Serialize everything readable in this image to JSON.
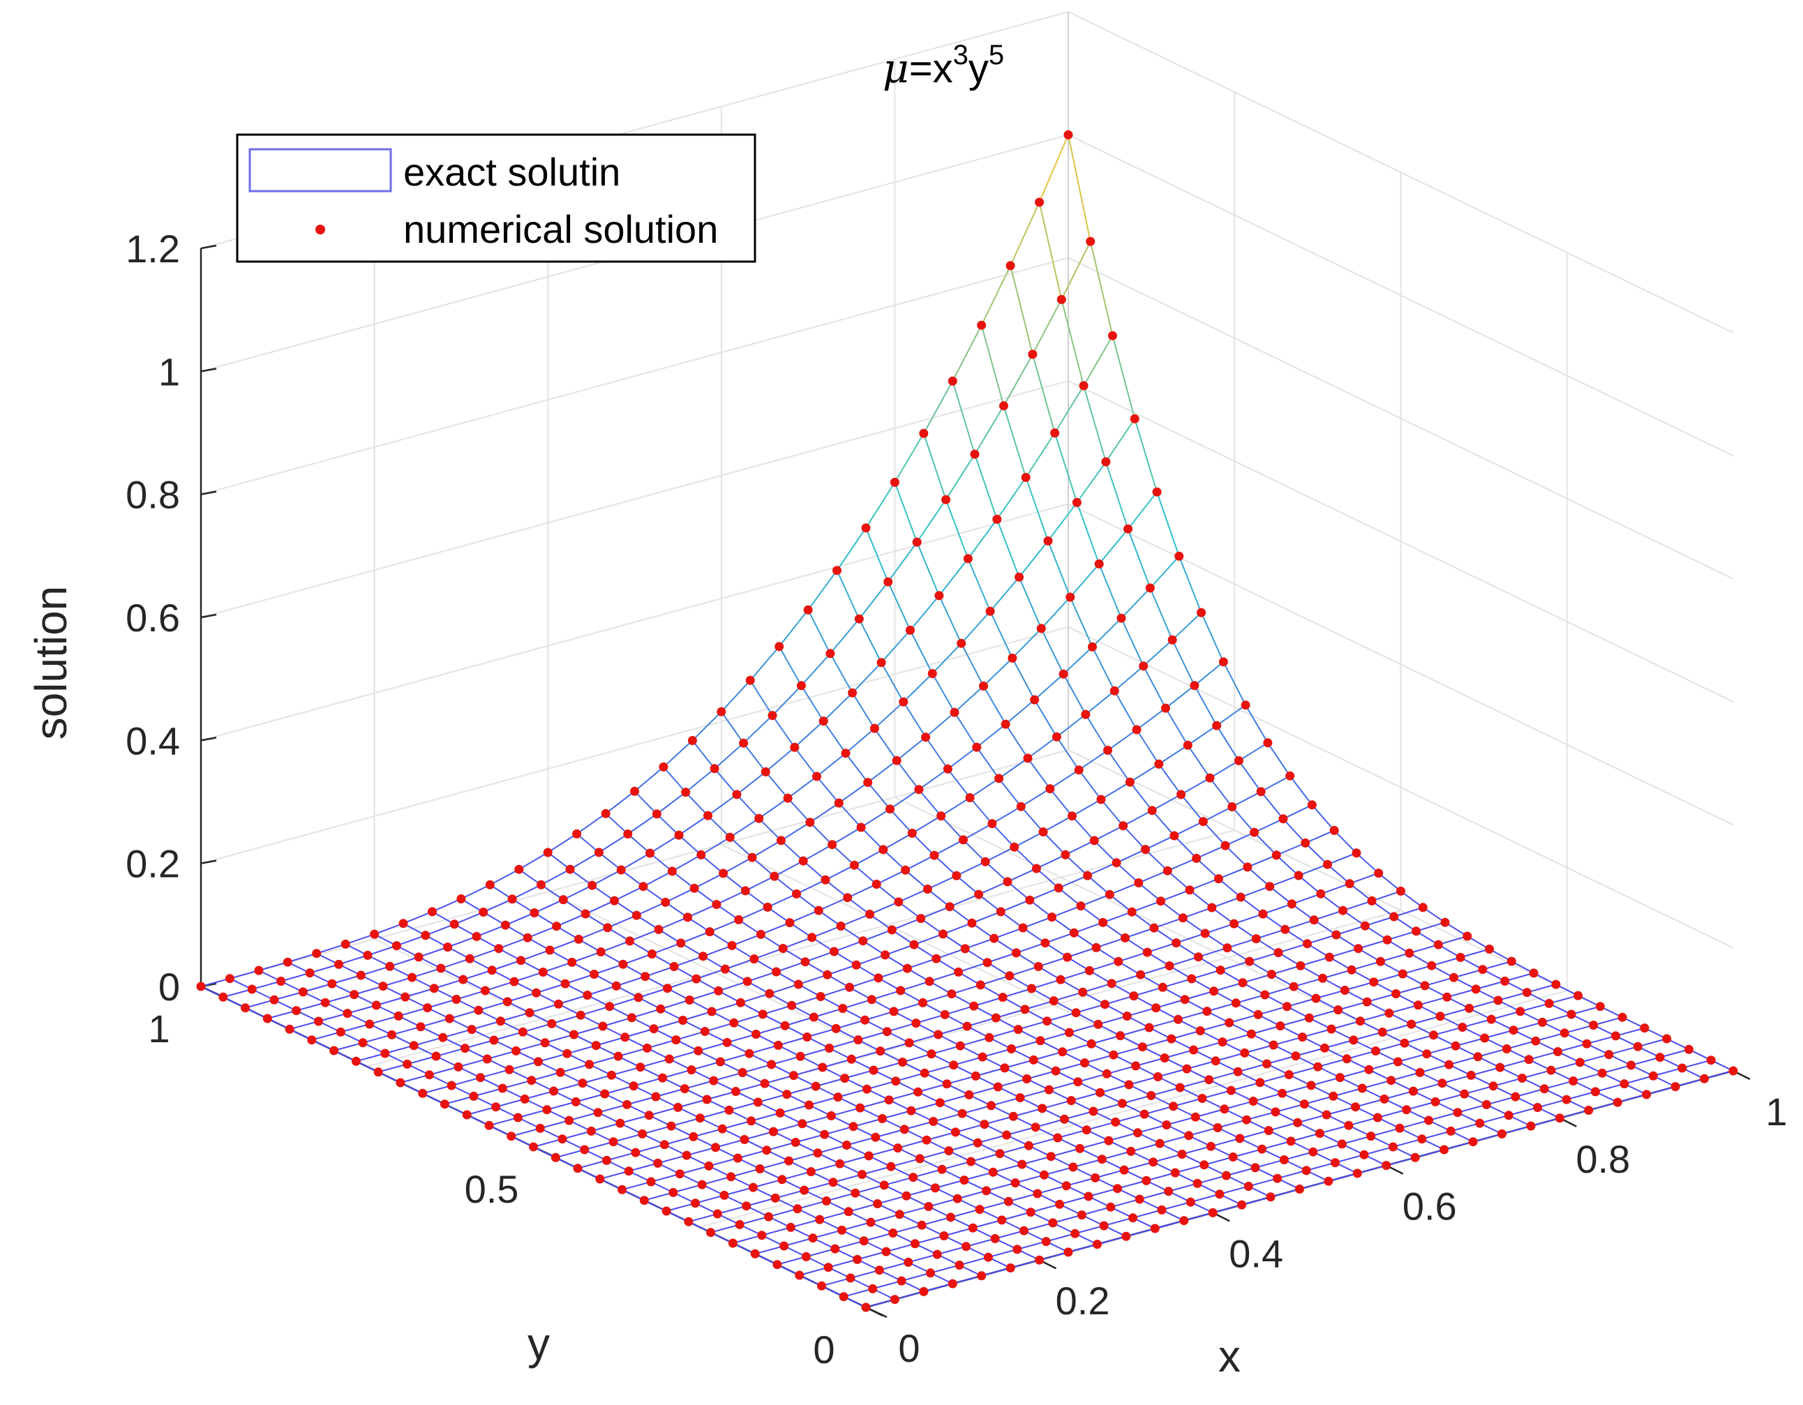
{
  "chart_data": {
    "type": "surface3d",
    "title": {
      "prefix": "μ",
      "rest": "=x",
      "exp1": "3",
      "mid": "y",
      "exp2": "5"
    },
    "function": "x^3*y^5",
    "xlabel": "x",
    "ylabel": "y",
    "zlabel": "solution",
    "xlim": [
      0,
      1
    ],
    "ylim": [
      0,
      1
    ],
    "zlim": [
      0,
      1.2
    ],
    "x_ticks": [
      "0",
      "0.2",
      "0.4",
      "0.6",
      "0.8",
      "1"
    ],
    "y_ticks": [
      "0",
      "0.5",
      "1"
    ],
    "z_ticks": [
      "0",
      "0.2",
      "0.4",
      "0.6",
      "0.8",
      "1",
      "1.2"
    ],
    "grid": true,
    "grid_points": 31,
    "legend": {
      "position": "top-left",
      "entries": [
        {
          "label": "exact solutin",
          "style": "surface"
        },
        {
          "label": "numerical solution",
          "style": "marker"
        }
      ]
    },
    "colors": {
      "surface_low": "#4b4bf0",
      "surface_mid": "#2ec4c8",
      "surface_high": "#f5c430",
      "marker": "#e8130c",
      "grid": "#e3e3e3",
      "axis": "#262626"
    }
  }
}
